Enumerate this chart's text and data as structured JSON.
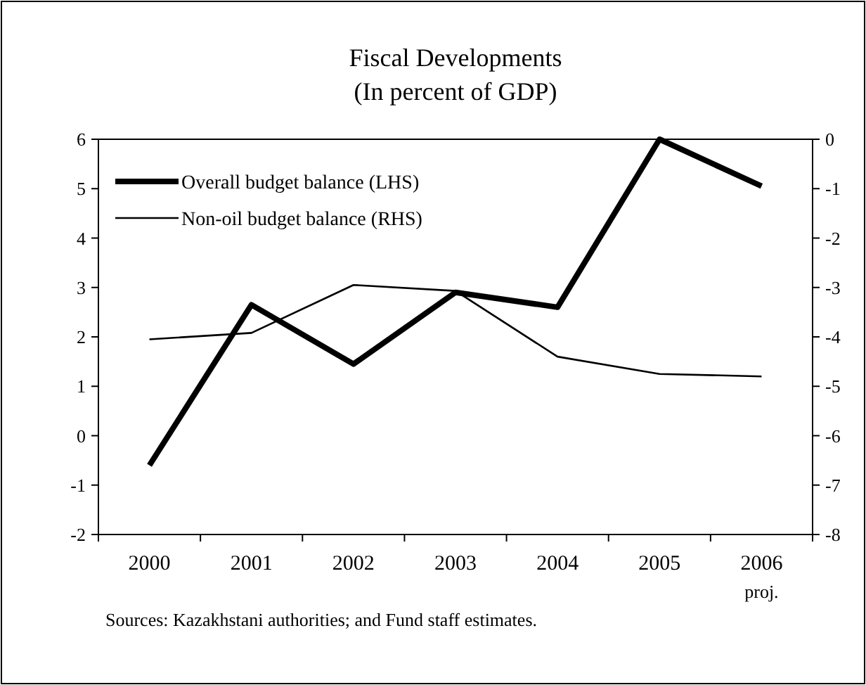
{
  "chart_data": {
    "type": "line",
    "title": "Fiscal Developments",
    "subtitle": "(In percent of GDP)",
    "categories": [
      "2000",
      "2001",
      "2002",
      "2003",
      "2004",
      "2005",
      "2006"
    ],
    "series": [
      {
        "name": "Overall budget balance (LHS)",
        "color": "#000000",
        "values": [
          -0.6,
          2.65,
          1.45,
          2.9,
          2.6,
          6.0,
          5.05
        ]
      },
      {
        "name": "Non-oil budget balance (RHS)",
        "color": "#000000",
        "axis": "y2",
        "values": [
          -4.05,
          -3.92,
          -2.95,
          -3.07,
          -4.4,
          -4.75,
          -4.8
        ]
      }
    ],
    "ylim": [
      -2,
      6
    ],
    "yticks": [
      -2,
      -1,
      0,
      1,
      2,
      3,
      4,
      5,
      6
    ],
    "y2lim": [
      -8,
      0
    ],
    "y2ticks": [
      -8,
      -7,
      -6,
      -5,
      -4,
      -3,
      -2,
      -1,
      0
    ],
    "grid": false,
    "legend": "top left",
    "marker": "none",
    "line_style": "solid",
    "annotations": [
      "Sources: Kazakhstani authorities; and Fund staff estimates.",
      "proj."
    ]
  }
}
